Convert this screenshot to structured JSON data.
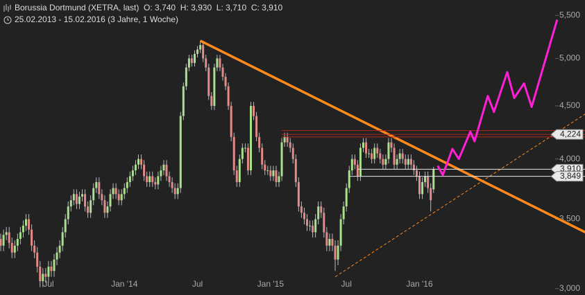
{
  "chart_data": {
    "type": "candlestick",
    "title": "Borussia Dortmund (XETRA, last)  O: 3,740  H: 3,930  L: 3,710  C: 3,910",
    "subtitle": "25.02.2013 - 15.02.2016 (3 Jahre, 1 Woche)",
    "log_scale": true,
    "ylim": [
      2958,
      5692
    ],
    "yticks": [
      {
        "value": 3000,
        "label": "3,000"
      },
      {
        "value": 3500,
        "label": "3,500"
      },
      {
        "value": 4000,
        "label": "4,000"
      },
      {
        "value": 4500,
        "label": "4,500"
      },
      {
        "value": 5000,
        "label": "5,000"
      },
      {
        "value": 5500,
        "label": "5,500"
      }
    ],
    "categories": [
      null,
      null,
      null,
      null,
      null,
      null,
      null,
      null,
      null,
      null,
      null,
      null,
      null,
      null,
      null,
      null,
      null,
      null,
      "Jul",
      null,
      null,
      null,
      null,
      null,
      null,
      null,
      null,
      null,
      null,
      null,
      null,
      null,
      null,
      null,
      null,
      null,
      null,
      null,
      null,
      null,
      null,
      null,
      null,
      null,
      null,
      "Jan '14",
      null,
      null,
      null,
      null,
      null,
      null,
      null,
      null,
      null,
      null,
      null,
      null,
      null,
      null,
      null,
      null,
      null,
      null,
      null,
      null,
      null,
      null,
      null,
      null,
      null,
      "Jul",
      null,
      null,
      null,
      null,
      null,
      null,
      null,
      null,
      null,
      null,
      null,
      null,
      null,
      null,
      null,
      null,
      null,
      null,
      null,
      null,
      null,
      null,
      null,
      null,
      null,
      "Jan '15",
      null,
      null,
      null,
      null,
      null,
      null,
      null,
      null,
      null,
      null,
      null,
      null,
      null,
      null,
      null,
      null,
      null,
      null,
      null,
      null,
      null,
      null,
      null,
      null,
      null,
      null,
      "Jul",
      null,
      null,
      null,
      null,
      null,
      null,
      null,
      null,
      null,
      null,
      null,
      null,
      null,
      null,
      null,
      null,
      null,
      null,
      null,
      null,
      null,
      null,
      null,
      null,
      null,
      "Jan '16",
      null,
      null,
      null,
      null,
      null
    ],
    "up_color": "#a9e08c",
    "down_color": "#e58a8a",
    "series": [
      {
        "values": [
          [
            3300,
            3400,
            3260,
            3350
          ],
          [
            3350,
            3390,
            3260,
            3300
          ],
          [
            3300,
            3420,
            3260,
            3380
          ],
          [
            3380,
            3440,
            3340,
            3400
          ],
          [
            3400,
            3440,
            3280,
            3320
          ],
          [
            3320,
            3360,
            3210,
            3250
          ],
          [
            3250,
            3340,
            3210,
            3300
          ],
          [
            3300,
            3390,
            3260,
            3350
          ],
          [
            3350,
            3440,
            3310,
            3400
          ],
          [
            3400,
            3490,
            3360,
            3450
          ],
          [
            3450,
            3540,
            3410,
            3500
          ],
          [
            3500,
            3540,
            3380,
            3420
          ],
          [
            3420,
            3460,
            3260,
            3300
          ],
          [
            3300,
            3340,
            3210,
            3250
          ],
          [
            3250,
            3290,
            3110,
            3150
          ],
          [
            3150,
            3190,
            3010,
            3050
          ],
          [
            3050,
            3140,
            3010,
            3100
          ],
          [
            3100,
            3140,
            3040,
            3080
          ],
          [
            3080,
            3190,
            3040,
            3150
          ],
          [
            3150,
            3190,
            3080,
            3120
          ],
          [
            3120,
            3240,
            3080,
            3200
          ],
          [
            3200,
            3290,
            3160,
            3250
          ],
          [
            3250,
            3340,
            3210,
            3300
          ],
          [
            3300,
            3440,
            3260,
            3400
          ],
          [
            3400,
            3540,
            3360,
            3500
          ],
          [
            3500,
            3640,
            3460,
            3600
          ],
          [
            3600,
            3690,
            3560,
            3650
          ],
          [
            3650,
            3740,
            3610,
            3700
          ],
          [
            3700,
            3740,
            3580,
            3620
          ],
          [
            3620,
            3720,
            3580,
            3680
          ],
          [
            3680,
            3740,
            3640,
            3700
          ],
          [
            3700,
            3740,
            3560,
            3600
          ],
          [
            3600,
            3640,
            3510,
            3550
          ],
          [
            3550,
            3690,
            3510,
            3650
          ],
          [
            3650,
            3790,
            3610,
            3750
          ],
          [
            3750,
            3840,
            3710,
            3800
          ],
          [
            3800,
            3840,
            3660,
            3700
          ],
          [
            3700,
            3740,
            3610,
            3650
          ],
          [
            3650,
            3690,
            3510,
            3550
          ],
          [
            3550,
            3640,
            3510,
            3600
          ],
          [
            3600,
            3740,
            3560,
            3700
          ],
          [
            3700,
            3790,
            3660,
            3750
          ],
          [
            3750,
            3790,
            3660,
            3700
          ],
          [
            3700,
            3740,
            3610,
            3650
          ],
          [
            3650,
            3740,
            3610,
            3700
          ],
          [
            3700,
            3790,
            3660,
            3750
          ],
          [
            3750,
            3840,
            3710,
            3800
          ],
          [
            3800,
            3890,
            3760,
            3850
          ],
          [
            3850,
            3940,
            3810,
            3900
          ],
          [
            3900,
            3990,
            3860,
            3950
          ],
          [
            3950,
            4040,
            3910,
            4000
          ],
          [
            4000,
            4040,
            3910,
            3950
          ],
          [
            3950,
            3990,
            3810,
            3850
          ],
          [
            3850,
            3890,
            3760,
            3800
          ],
          [
            3800,
            3890,
            3760,
            3850
          ],
          [
            3850,
            3890,
            3760,
            3800
          ],
          [
            3800,
            3840,
            3740,
            3780
          ],
          [
            3780,
            3890,
            3740,
            3850
          ],
          [
            3850,
            3940,
            3810,
            3900
          ],
          [
            3900,
            3990,
            3860,
            3950
          ],
          [
            3950,
            3990,
            3810,
            3850
          ],
          [
            3850,
            3890,
            3760,
            3800
          ],
          [
            3800,
            3840,
            3710,
            3750
          ],
          [
            3750,
            3790,
            3660,
            3700
          ],
          [
            3700,
            3790,
            3660,
            3750
          ],
          [
            3750,
            4440,
            3710,
            4400
          ],
          [
            4400,
            4740,
            4360,
            4700
          ],
          [
            4700,
            4940,
            4660,
            4900
          ],
          [
            4900,
            5040,
            4860,
            5000
          ],
          [
            5000,
            5040,
            4910,
            4950
          ],
          [
            4950,
            5090,
            4910,
            5050
          ],
          [
            5050,
            5140,
            5010,
            5100
          ],
          [
            5100,
            5200,
            5060,
            5150
          ],
          [
            5150,
            5190,
            4960,
            5000
          ],
          [
            5000,
            5040,
            4860,
            4900
          ],
          [
            4900,
            4940,
            4560,
            4600
          ],
          [
            4600,
            4640,
            4460,
            4500
          ],
          [
            4500,
            4940,
            4460,
            4900
          ],
          [
            4900,
            5040,
            4860,
            5000
          ],
          [
            5000,
            5040,
            4860,
            4900
          ],
          [
            4900,
            4940,
            4760,
            4800
          ],
          [
            4800,
            4840,
            4660,
            4700
          ],
          [
            4700,
            4740,
            4460,
            4500
          ],
          [
            4500,
            4540,
            4160,
            4200
          ],
          [
            4200,
            4240,
            3860,
            3900
          ],
          [
            3900,
            3940,
            3760,
            3800
          ],
          [
            3800,
            4040,
            3760,
            4000
          ],
          [
            4000,
            4140,
            3960,
            4100
          ],
          [
            4100,
            4140,
            4060,
            4100
          ],
          [
            4100,
            4140,
            3860,
            3900
          ],
          [
            3900,
            4540,
            3860,
            4500
          ],
          [
            4500,
            4540,
            4360,
            4400
          ],
          [
            4400,
            4440,
            4160,
            4200
          ],
          [
            4200,
            4240,
            4060,
            4100
          ],
          [
            4100,
            4140,
            3910,
            3950
          ],
          [
            3950,
            3990,
            3860,
            3900
          ],
          [
            3900,
            3940,
            3860,
            3900
          ],
          [
            3900,
            3940,
            3810,
            3850
          ],
          [
            3850,
            3940,
            3810,
            3900
          ],
          [
            3900,
            3940,
            3760,
            3800
          ],
          [
            3800,
            3890,
            3760,
            3850
          ],
          [
            3850,
            4190,
            3810,
            4150
          ],
          [
            4150,
            4240,
            4110,
            4200
          ],
          [
            4200,
            4240,
            4110,
            4150
          ],
          [
            4150,
            4190,
            4060,
            4100
          ],
          [
            4100,
            4140,
            3960,
            4000
          ],
          [
            4000,
            4040,
            3760,
            3800
          ],
          [
            3800,
            3840,
            3560,
            3600
          ],
          [
            3600,
            3640,
            3510,
            3550
          ],
          [
            3550,
            3590,
            3460,
            3500
          ],
          [
            3500,
            3540,
            3410,
            3450
          ],
          [
            3450,
            3490,
            3410,
            3450
          ],
          [
            3450,
            3490,
            3360,
            3400
          ],
          [
            3400,
            3540,
            3360,
            3500
          ],
          [
            3500,
            3640,
            3460,
            3600
          ],
          [
            3600,
            3640,
            3510,
            3550
          ],
          [
            3550,
            3590,
            3360,
            3400
          ],
          [
            3400,
            3440,
            3260,
            3300
          ],
          [
            3300,
            3390,
            3260,
            3350
          ],
          [
            3350,
            3390,
            3260,
            3300
          ],
          [
            3300,
            3340,
            3120,
            3200
          ],
          [
            3200,
            3340,
            3160,
            3300
          ],
          [
            3300,
            3540,
            3260,
            3500
          ],
          [
            3500,
            3640,
            3460,
            3600
          ],
          [
            3600,
            3790,
            3560,
            3750
          ],
          [
            3750,
            3940,
            3710,
            3900
          ],
          [
            3900,
            4040,
            3860,
            4000
          ],
          [
            4000,
            4040,
            3910,
            3950
          ],
          [
            3950,
            3990,
            3810,
            3850
          ],
          [
            3850,
            4140,
            3810,
            4100
          ],
          [
            4100,
            4190,
            4060,
            4150
          ],
          [
            4150,
            4190,
            4010,
            4050
          ],
          [
            4050,
            4090,
            4010,
            4050
          ],
          [
            4050,
            4090,
            3960,
            4000
          ],
          [
            4000,
            4140,
            3960,
            4100
          ],
          [
            4100,
            4140,
            4010,
            4050
          ],
          [
            4050,
            4090,
            3960,
            4000
          ],
          [
            4000,
            4040,
            3910,
            3950
          ],
          [
            3950,
            4040,
            3910,
            4000
          ],
          [
            4000,
            4190,
            3960,
            4150
          ],
          [
            4150,
            4190,
            4060,
            4100
          ],
          [
            4100,
            4140,
            3910,
            3950
          ],
          [
            3950,
            4040,
            3910,
            4000
          ],
          [
            4000,
            4090,
            3960,
            4050
          ],
          [
            4050,
            4090,
            3960,
            4000
          ],
          [
            4000,
            4040,
            3910,
            3950
          ],
          [
            3950,
            4040,
            3910,
            4000
          ],
          [
            4000,
            4040,
            3910,
            3950
          ],
          [
            3950,
            3990,
            3860,
            3900
          ],
          [
            3900,
            3940,
            3810,
            3850
          ],
          [
            3850,
            3890,
            3660,
            3700
          ],
          [
            3700,
            3840,
            3660,
            3800
          ],
          [
            3800,
            3890,
            3760,
            3850
          ],
          [
            3850,
            3890,
            3710,
            3750
          ],
          [
            3750,
            3790,
            3560,
            3650
          ],
          [
            3740,
            3930,
            3710,
            3910
          ]
        ]
      }
    ],
    "overlays": [
      {
        "color": "#ff8a1e",
        "style": "solid",
        "x": [
          72,
          209
        ],
        "values": [
          5200,
          3400
        ]
      },
      {
        "color": "#ff8a1e",
        "style": "dashed",
        "x": [
          120,
          209
        ],
        "values": [
          3080,
          4420
        ]
      },
      {
        "color": "#b3261e",
        "style": "solid",
        "x": [
          101,
          209
        ],
        "values": [
          4200,
          4200
        ]
      },
      {
        "color": "#b3261e",
        "style": "solid",
        "x": [
          101,
          209
        ],
        "values": [
          4224,
          4224
        ]
      },
      {
        "color": "#b3261e",
        "style": "solid",
        "x": [
          101,
          209
        ],
        "values": [
          4260,
          4260
        ]
      },
      {
        "color": "#e8e8e8",
        "style": "solid",
        "x": [
          128,
          209
        ],
        "values": [
          3910,
          3910
        ]
      },
      {
        "color": "#e8e8e8",
        "style": "solid",
        "x": [
          125,
          209
        ],
        "values": [
          3849,
          3849
        ]
      },
      {
        "color": "#ff1fd6",
        "style": "solid",
        "x": [
          156.5,
          158.3,
          161.7,
          164,
          168.1,
          169.6,
          174.3,
          176.5,
          181.2,
          183.7,
          187.2,
          189.9,
          199
        ],
        "values": [
          3940,
          3860,
          4090,
          4000,
          4250,
          4160,
          4600,
          4440,
          4850,
          4580,
          4730,
          4490,
          5450
        ]
      }
    ],
    "price_tags": [
      {
        "value": 4224,
        "label": "4,224"
      },
      {
        "value": 3910,
        "label": "3,910"
      },
      {
        "value": 3849,
        "label": "3,849"
      }
    ]
  }
}
